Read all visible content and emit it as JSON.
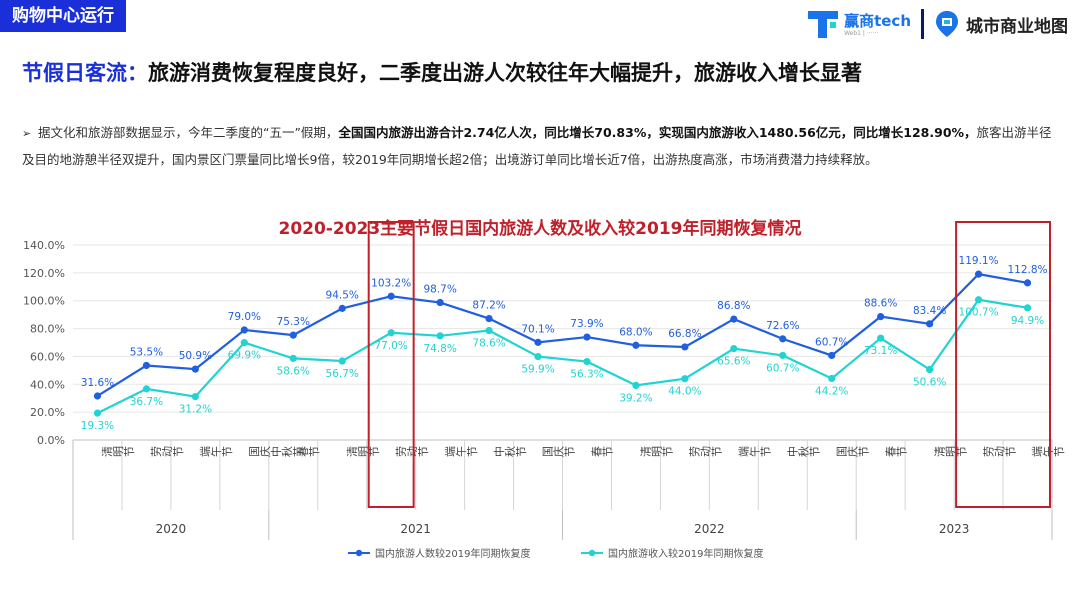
{
  "header": {
    "tag": "购物中心运行",
    "logo1_text": "赢商tech",
    "logo1_sub": "Web1 | ······",
    "logo2_text": "城市商业地图"
  },
  "headline": {
    "prefix": "节假日客流：",
    "text": "旅游消费恢复程度良好，二季度出游人次较往年大幅提升，旅游收入增长显著"
  },
  "summary": {
    "t1": "据文化和旅游部数据显示，今年二季度的“五一”假期，",
    "b1": "全国国内旅游出游合计2.74亿人次，同比增长70.83%，实现国内旅游收入1480.56亿元，同比增长128.90%，",
    "t2": "旅客出游半径及目的地游憩半径双提升，国内景区门票量同比增长9倍，较2019年同期增长超2倍；出境游订单同比增长近7倍，出游热度高涨，市场消费潜力持续释放。"
  },
  "chart_data": {
    "type": "line",
    "title": "2020-2023主要节假日国内旅游人数及收入较2019年同期恢复情况",
    "categories": [
      "清明节",
      "劳动节",
      "端午节",
      "国庆中秋节",
      "春节",
      "清明节",
      "劳动节",
      "端午节",
      "中秋节",
      "国庆节",
      "春节",
      "清明节",
      "劳动节",
      "端午节",
      "中秋节",
      "国庆节",
      "春节",
      "清明节",
      "劳动节",
      "端午节"
    ],
    "year_groups": [
      {
        "year": "2020",
        "count": 4
      },
      {
        "year": "2021",
        "count": 6
      },
      {
        "year": "2022",
        "count": 6
      },
      {
        "year": "2023",
        "count": 4
      }
    ],
    "series": [
      {
        "name": "国内旅游人数较2019年同期恢复度",
        "color": "#1f5fe0",
        "values": [
          31.6,
          53.5,
          50.9,
          79.0,
          75.3,
          94.5,
          103.2,
          98.7,
          87.2,
          70.1,
          73.9,
          68.0,
          66.8,
          86.8,
          72.6,
          60.7,
          88.6,
          83.4,
          119.1,
          112.8
        ]
      },
      {
        "name": "国内旅游收入较2019年同期恢复度",
        "color": "#22d3d3",
        "values": [
          19.3,
          36.7,
          31.2,
          69.9,
          58.6,
          56.7,
          77.0,
          74.8,
          78.6,
          59.9,
          56.3,
          39.2,
          44.0,
          65.6,
          60.7,
          44.2,
          73.1,
          50.6,
          100.7,
          94.9
        ]
      }
    ],
    "yticks": [
      "0.0%",
      "20.0%",
      "40.0%",
      "60.0%",
      "80.0%",
      "100.0%",
      "120.0%",
      "140.0%"
    ],
    "ylim": [
      0,
      140
    ],
    "highlight_indices": [
      [
        6
      ],
      [
        18,
        19
      ]
    ],
    "highlight_color": "#c0202a",
    "legend_position": "bottom"
  }
}
